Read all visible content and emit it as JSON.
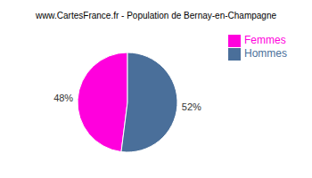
{
  "chart_data": {
    "type": "pie",
    "title": "www.CartesFrance.fr - Population de Bernay-en-Champagne",
    "categories": [
      "Femmes",
      "Hommes"
    ],
    "values": [
      48,
      52
    ],
    "value_labels": [
      "48%",
      "52%"
    ],
    "colors": [
      "#ff00dd",
      "#4a6f9a"
    ],
    "legend": "upper right"
  }
}
